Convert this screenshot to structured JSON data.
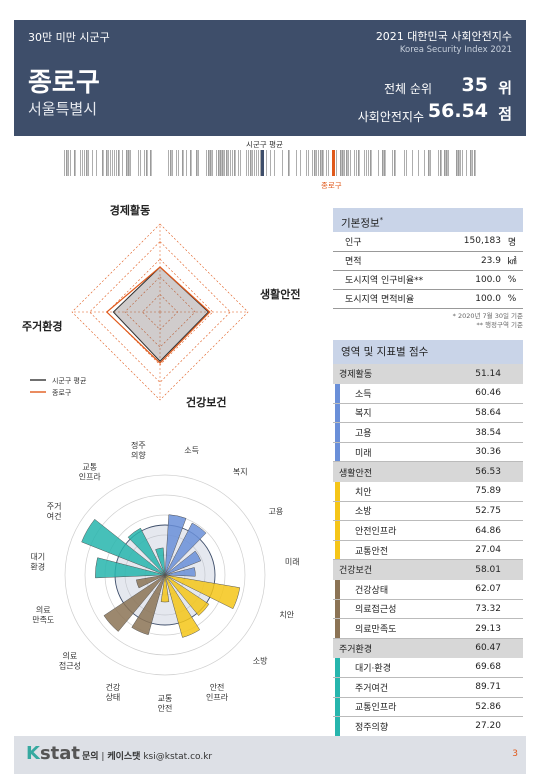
{
  "header": {
    "group": "30만 미만 시군구",
    "report_title": "2021 대한민국 사회안전지수",
    "report_subtitle": "Korea Security Index 2021",
    "name": "종로구",
    "region": "서울특별시",
    "rank_label": "전체 순위",
    "rank_value": "35",
    "rank_unit": "위",
    "index_label": "사회안전지수",
    "index_value": "56.54",
    "index_unit": "점"
  },
  "barcode": {
    "avg_label": "시군구 평균",
    "my_label": "종로구",
    "avg_color": "#3e4e6a",
    "my_color": "#e05a1c"
  },
  "radar_chart": {
    "type": "radar",
    "axes": [
      "경제활동",
      "생활안전",
      "건강보건",
      "주거환경"
    ],
    "range": [
      0,
      100
    ],
    "series": [
      {
        "name": "시군구 평균",
        "color": "#333333",
        "values": [
          51.0,
          55.0,
          56.0,
          53.0
        ]
      },
      {
        "name": "종로구",
        "color": "#e05a1c",
        "values": [
          51.14,
          56.53,
          58.01,
          60.47
        ]
      }
    ],
    "legend": [
      "시군구 평균",
      "종로구"
    ]
  },
  "polar_chart": {
    "type": "polar-bar",
    "range": [
      0,
      100
    ],
    "avg_circle": 50,
    "labels": [
      "소득",
      "복지",
      "고용",
      "미래",
      "치안",
      "소방",
      "안전\n인프라",
      "교통\n안전",
      "건강\n상태",
      "의료\n접근성",
      "의료\n만족도",
      "대기\n환경",
      "주거\n여건",
      "교통\n인프라",
      "정주\n의향"
    ],
    "values": [
      60.46,
      58.64,
      38.54,
      30.36,
      75.89,
      52.75,
      64.86,
      27.04,
      62.07,
      73.32,
      29.13,
      69.68,
      89.71,
      52.86,
      27.2
    ],
    "colors": [
      "#6a8fd8",
      "#6a8fd8",
      "#6a8fd8",
      "#6a8fd8",
      "#f5c518",
      "#f5c518",
      "#f5c518",
      "#f5c518",
      "#8b7355",
      "#8b7355",
      "#8b7355",
      "#26b5ad",
      "#26b5ad",
      "#26b5ad",
      "#26b5ad"
    ]
  },
  "basic_info": {
    "title": "기본정보",
    "title_mark": "*",
    "rows": [
      {
        "label": "인구",
        "value": "150,183",
        "unit": "명"
      },
      {
        "label": "면적",
        "value": "23.9",
        "unit": "㎢"
      },
      {
        "label": "도시지역 인구비율**",
        "value": "100.0",
        "unit": "%"
      },
      {
        "label": "도시지역 면적비율",
        "value": "100.0",
        "unit": "%"
      }
    ],
    "note1": "* 2020년 7월 30일 기준",
    "note2": "** 행정구역 기준"
  },
  "scores": {
    "title": "영역 및 지표별 점수",
    "rows": [
      {
        "type": "cat",
        "label": "경제활동",
        "value": "51.14"
      },
      {
        "type": "sub",
        "label": "소득",
        "value": "60.46",
        "color": "#6a8fd8"
      },
      {
        "type": "sub",
        "label": "복지",
        "value": "58.64",
        "color": "#6a8fd8"
      },
      {
        "type": "sub",
        "label": "고용",
        "value": "38.54",
        "color": "#6a8fd8"
      },
      {
        "type": "sub",
        "label": "미래",
        "value": "30.36",
        "color": "#6a8fd8"
      },
      {
        "type": "cat",
        "label": "생활안전",
        "value": "56.53"
      },
      {
        "type": "sub",
        "label": "치안",
        "value": "75.89",
        "color": "#f5c518"
      },
      {
        "type": "sub",
        "label": "소방",
        "value": "52.75",
        "color": "#f5c518"
      },
      {
        "type": "sub",
        "label": "안전인프라",
        "value": "64.86",
        "color": "#f5c518"
      },
      {
        "type": "sub",
        "label": "교통안전",
        "value": "27.04",
        "color": "#f5c518"
      },
      {
        "type": "cat",
        "label": "건강보건",
        "value": "58.01"
      },
      {
        "type": "sub",
        "label": "건강상태",
        "value": "62.07",
        "color": "#8b7355"
      },
      {
        "type": "sub",
        "label": "의료접근성",
        "value": "73.32",
        "color": "#8b7355"
      },
      {
        "type": "sub",
        "label": "의료만족도",
        "value": "29.13",
        "color": "#8b7355"
      },
      {
        "type": "cat",
        "label": "주거환경",
        "value": "60.47"
      },
      {
        "type": "sub",
        "label": "대기·환경",
        "value": "69.68",
        "color": "#26b5ad"
      },
      {
        "type": "sub",
        "label": "주거여건",
        "value": "89.71",
        "color": "#26b5ad"
      },
      {
        "type": "sub",
        "label": "교통인프라",
        "value": "52.86",
        "color": "#26b5ad"
      },
      {
        "type": "sub",
        "label": "정주의향",
        "value": "27.20",
        "color": "#26b5ad"
      }
    ]
  },
  "footer": {
    "logo_k": "K",
    "logo_rest": "stat",
    "contact_label": "문의",
    "contact_org": "케이스탯",
    "contact_email": "ksi@kstat.co.kr",
    "page": "3"
  }
}
